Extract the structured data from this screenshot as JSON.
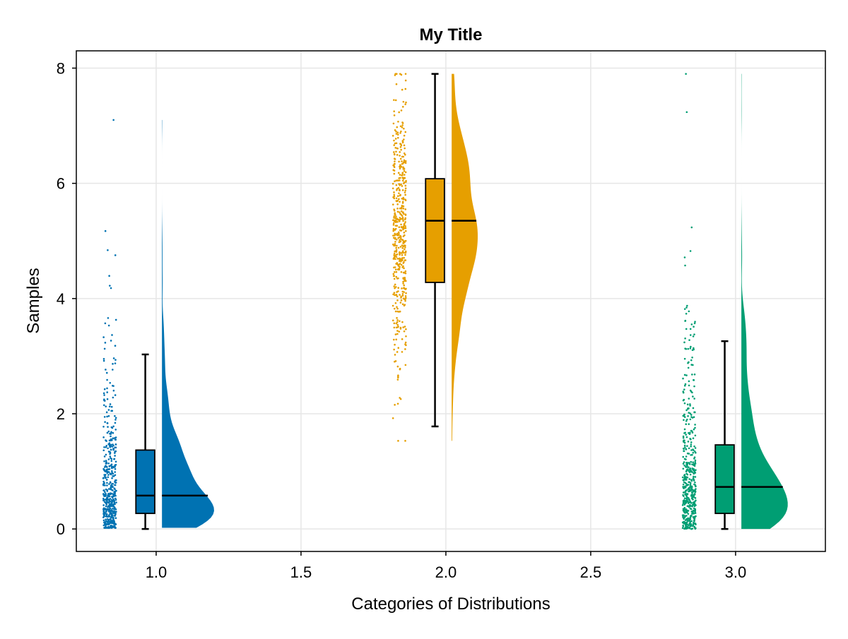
{
  "chart_data": {
    "type": "raincloud",
    "title": "My Title",
    "xlabel": "Categories of Distributions",
    "ylabel": "Samples",
    "xlim": [
      0.7244,
      3.31
    ],
    "ylim": [
      -0.39,
      8.3
    ],
    "grid": true,
    "xticks": [
      {
        "value": 1.0,
        "label": "1.0"
      },
      {
        "value": 1.5,
        "label": "1.5"
      },
      {
        "value": 2.0,
        "label": "2.0"
      },
      {
        "value": 2.5,
        "label": "2.5"
      },
      {
        "value": 3.0,
        "label": "3.0"
      }
    ],
    "yticks": [
      {
        "value": 0,
        "label": "0"
      },
      {
        "value": 2,
        "label": "2"
      },
      {
        "value": 4,
        "label": "4"
      },
      {
        "value": 6,
        "label": "6"
      },
      {
        "value": 8,
        "label": "8"
      }
    ],
    "series": [
      {
        "name": "1",
        "category": 1,
        "color": "#0072B2",
        "distribution": {
          "kind": "exponential",
          "mean": 0.9,
          "n": 500,
          "min": 0.02,
          "max": 7.1
        },
        "box": {
          "whisker_low": 0.0,
          "q1": 0.27,
          "median": 0.58,
          "q3": 1.37,
          "whisker_high": 3.03
        },
        "violin_max_width": 0.18
      },
      {
        "name": "2",
        "category": 2,
        "color": "#E69F00",
        "distribution": {
          "kind": "normal",
          "mean": 5.2,
          "sd": 1.15,
          "n": 500,
          "min": 1.53,
          "max": 7.9
        },
        "box": {
          "whisker_low": 1.78,
          "q1": 4.28,
          "median": 5.35,
          "q3": 6.08,
          "whisker_high": 7.9
        },
        "violin_max_width": 0.09
      },
      {
        "name": "3",
        "category": 3,
        "color": "#009E73",
        "distribution": {
          "kind": "exponential",
          "mean": 1.0,
          "n": 500,
          "min": 0.0,
          "max": 7.9
        },
        "box": {
          "whisker_low": 0.0,
          "q1": 0.27,
          "median": 0.73,
          "q3": 1.46,
          "whisker_high": 3.26
        },
        "violin_max_width": 0.16
      }
    ]
  }
}
